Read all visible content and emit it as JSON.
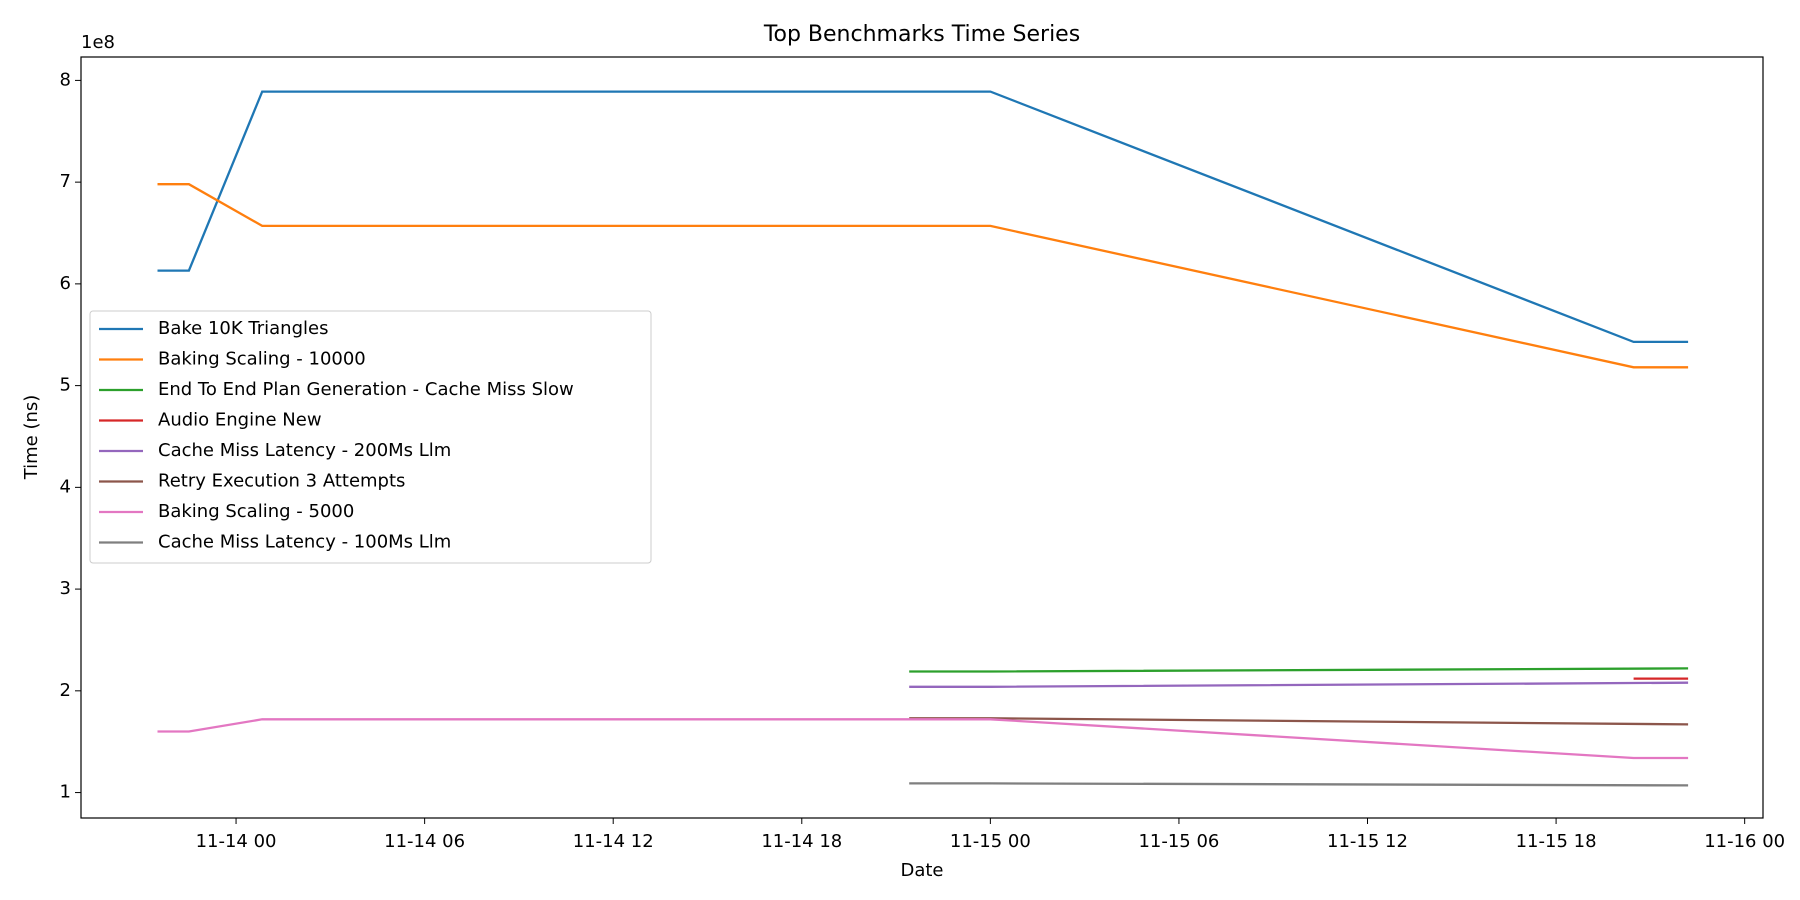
{
  "chart_data": {
    "type": "line",
    "title": "Top Benchmarks Time Series",
    "x_label": "Date",
    "y_label": "Time (ns)",
    "y_offset_label": "1e8",
    "xlim": [
      "11-13 19:04",
      "11-16 00:35"
    ],
    "xticks": [
      {
        "value": "11-14 00:00",
        "label": "11-14 00"
      },
      {
        "value": "11-14 06:00",
        "label": "11-14 06"
      },
      {
        "value": "11-14 12:00",
        "label": "11-14 12"
      },
      {
        "value": "11-14 18:00",
        "label": "11-14 18"
      },
      {
        "value": "11-15 00:00",
        "label": "11-15 00"
      },
      {
        "value": "11-15 06:00",
        "label": "11-15 06"
      },
      {
        "value": "11-15 12:00",
        "label": "11-15 12"
      },
      {
        "value": "11-15 18:00",
        "label": "11-15 18"
      },
      {
        "value": "11-16 00:00",
        "label": "11-16 00"
      }
    ],
    "ylim": [
      0.75,
      8.23
    ],
    "yticks": [
      1,
      2,
      3,
      4,
      5,
      6,
      7,
      8
    ],
    "legend": "center-left",
    "series": [
      {
        "name": "Bake 10K Triangles",
        "color": "#1f77b4",
        "x": [
          "11-13 21:30",
          "11-13 22:30",
          "11-14 00:50",
          "11-15 00:00",
          "11-15 20:28",
          "11-15 22:12"
        ],
        "values": [
          6.13,
          6.13,
          7.89,
          7.89,
          5.43,
          5.43
        ]
      },
      {
        "name": "Baking Scaling - 10000",
        "color": "#ff7f0e",
        "x": [
          "11-13 21:30",
          "11-13 22:30",
          "11-14 00:50",
          "11-15 00:00",
          "11-15 20:28",
          "11-15 22:12"
        ],
        "values": [
          6.98,
          6.98,
          6.57,
          6.57,
          5.18,
          5.18
        ]
      },
      {
        "name": "End To End Plan Generation - Cache Miss Slow",
        "color": "#2ca02c",
        "x": [
          "11-14 21:25",
          "11-15 00:00",
          "11-15 22:12"
        ],
        "values": [
          2.19,
          2.19,
          2.22
        ]
      },
      {
        "name": "Audio Engine New",
        "color": "#d62728",
        "x": [
          "11-15 20:28",
          "11-15 22:12"
        ],
        "values": [
          2.12,
          2.12
        ]
      },
      {
        "name": "Cache Miss Latency - 200Ms Llm",
        "color": "#9467bd",
        "x": [
          "11-14 21:25",
          "11-15 00:00",
          "11-15 22:12"
        ],
        "values": [
          2.04,
          2.04,
          2.08
        ]
      },
      {
        "name": "Retry Execution 3 Attempts",
        "color": "#8c564b",
        "x": [
          "11-14 21:25",
          "11-15 00:00",
          "11-15 22:12"
        ],
        "values": [
          1.73,
          1.73,
          1.67
        ]
      },
      {
        "name": "Baking Scaling - 5000",
        "color": "#e377c2",
        "x": [
          "11-13 21:30",
          "11-13 22:30",
          "11-14 00:50",
          "11-15 00:00",
          "11-15 20:28",
          "11-15 22:12"
        ],
        "values": [
          1.6,
          1.6,
          1.72,
          1.72,
          1.34,
          1.34
        ]
      },
      {
        "name": "Cache Miss Latency - 100Ms Llm",
        "color": "#7f7f7f",
        "x": [
          "11-14 21:25",
          "11-15 00:00",
          "11-15 22:12"
        ],
        "values": [
          1.09,
          1.09,
          1.07
        ]
      }
    ]
  }
}
